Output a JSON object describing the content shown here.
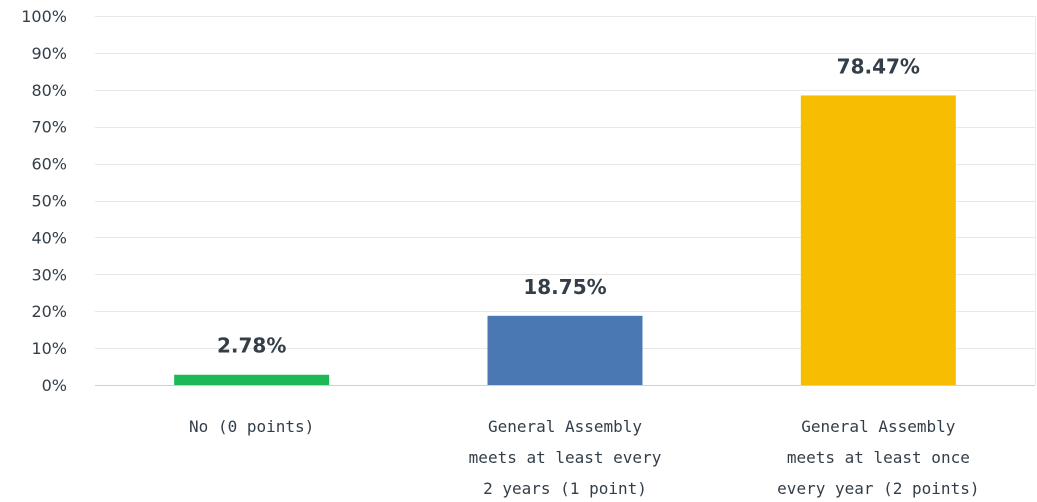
{
  "chart_data": {
    "type": "bar",
    "title": "",
    "xlabel": "",
    "ylabel": "",
    "ylim": [
      0,
      100
    ],
    "ytick_values": [
      0,
      10,
      20,
      30,
      40,
      50,
      60,
      70,
      80,
      90,
      100
    ],
    "ytick_labels": [
      "0%",
      "10%",
      "20%",
      "30%",
      "40%",
      "50%",
      "60%",
      "70%",
      "80%",
      "90%",
      "100%"
    ],
    "grid": true,
    "categories": [
      "No (0 points)",
      "General Assembly meets at least every 2 years (1 point)",
      "General Assembly meets at least once every year (2 points)"
    ],
    "category_lines": [
      [
        "No (0 points)"
      ],
      [
        "General Assembly",
        "meets at least every",
        "2 years (1 point)"
      ],
      [
        "General Assembly",
        "meets at least once",
        "every year (2 points)"
      ]
    ],
    "values": [
      2.78,
      18.75,
      78.47
    ],
    "data_labels": [
      "2.78%",
      "18.75%",
      "78.47%"
    ],
    "colors": [
      "#1db954",
      "#4a78b3",
      "#f7bd00"
    ],
    "grid_color": "#e8e8e8",
    "axis_color": "#d0d0d0",
    "text_color": "#333e48"
  }
}
